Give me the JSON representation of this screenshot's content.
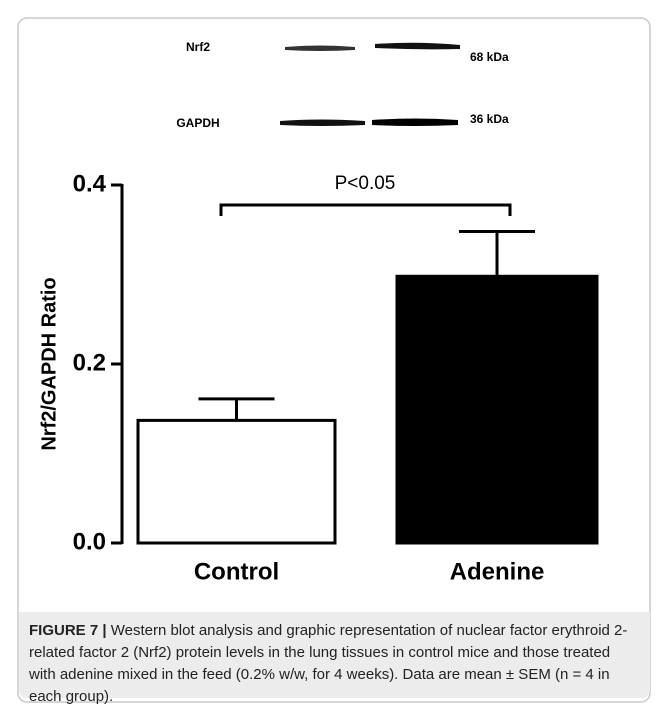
{
  "chart_data": {
    "type": "bar",
    "blot": {
      "proteins": [
        "Nrf2",
        "GAPDH"
      ],
      "sizes": [
        "68 kDa",
        "36 kDa"
      ]
    },
    "ylabel": "Nrf2/GAPDH Ratio",
    "categories": [
      "Control",
      "Adenine"
    ],
    "values": [
      0.137,
      0.298
    ],
    "errors": [
      0.024,
      0.05
    ],
    "colors": [
      "#ffffff",
      "#000000"
    ],
    "ylim": [
      0,
      0.4
    ],
    "yticks": [
      {
        "value": 0,
        "label": "0.0"
      },
      0.2,
      0.4
    ],
    "annotation": "P<0.05"
  },
  "caption": {
    "label": "FIGURE 7 |",
    "text": "Western blot analysis and graphic representation of nuclear factor erythroid 2-related factor 2 (Nrf2) protein levels in the lung tissues in control mice and those treated with adenine mixed in the feed (0.2% w/w, for 4 weeks). Data are mean ± SEM (n = 4 in each group)."
  }
}
